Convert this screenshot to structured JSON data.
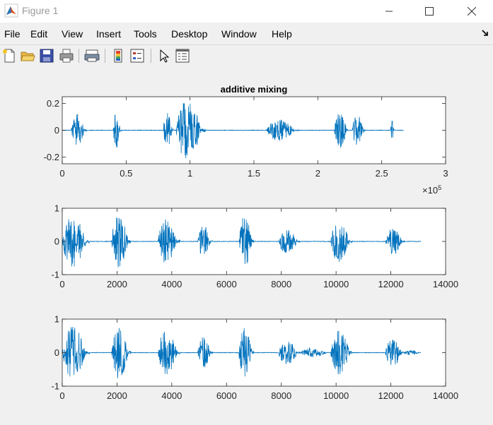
{
  "window": {
    "title": "Figure 1",
    "app_icon": "matlab-icon",
    "controls": [
      "minimize-icon",
      "maximize-icon",
      "close-icon"
    ]
  },
  "menu": {
    "items": [
      "File",
      "Edit",
      "View",
      "Insert",
      "Tools",
      "Desktop",
      "Window",
      "Help"
    ]
  },
  "toolbar": {
    "buttons": [
      "new-figure-icon",
      "open-folder-icon",
      "save-icon",
      "print-icon",
      "print-preview-icon",
      "colorbar-icon",
      "legend-icon",
      "edit-plot-arrow-icon",
      "property-inspector-icon"
    ]
  },
  "colors": {
    "line": "#0072bd",
    "background": "#f0f0f0",
    "axes_bg": "#ffffff"
  },
  "chart_data": [
    {
      "type": "line",
      "title": "additive mixing",
      "xlim": [
        0,
        300000
      ],
      "ylim": [
        -0.25,
        0.25
      ],
      "xticks": [
        "0",
        "0.5",
        "1",
        "1.5",
        "2",
        "2.5",
        "3"
      ],
      "yticks": [
        "0.2",
        "0",
        "-0.2"
      ],
      "x_exponent_label": "×10",
      "x_exponent_power": "5",
      "signal_length": 267000,
      "bursts": [
        {
          "start": 7000,
          "end": 19000,
          "amp": 0.15
        },
        {
          "start": 40000,
          "end": 46000,
          "amp": 0.17
        },
        {
          "start": 79000,
          "end": 87000,
          "amp": 0.17
        },
        {
          "start": 89000,
          "end": 112000,
          "amp": 0.27
        },
        {
          "start": 160000,
          "end": 185000,
          "amp": 0.1
        },
        {
          "start": 213000,
          "end": 224000,
          "amp": 0.17
        },
        {
          "start": 227000,
          "end": 237000,
          "amp": 0.15
        },
        {
          "start": 257000,
          "end": 260000,
          "amp": 0.1
        }
      ]
    },
    {
      "type": "line",
      "xlim": [
        0,
        14000
      ],
      "ylim": [
        -1,
        1
      ],
      "xticks": [
        "0",
        "2000",
        "4000",
        "6000",
        "8000",
        "10000",
        "12000",
        "14000"
      ],
      "yticks": [
        "1",
        "0",
        "-1"
      ],
      "signal_length": 13100,
      "bursts": [
        {
          "start": 0,
          "end": 1000,
          "amp": 0.95
        },
        {
          "start": 1800,
          "end": 2500,
          "amp": 1.0
        },
        {
          "start": 3500,
          "end": 4300,
          "amp": 0.85
        },
        {
          "start": 4950,
          "end": 5500,
          "amp": 0.6
        },
        {
          "start": 6450,
          "end": 7000,
          "amp": 0.95
        },
        {
          "start": 7900,
          "end": 8700,
          "amp": 0.45
        },
        {
          "start": 9800,
          "end": 10600,
          "amp": 0.8
        },
        {
          "start": 11800,
          "end": 12500,
          "amp": 0.5
        }
      ]
    },
    {
      "type": "line",
      "xlim": [
        0,
        14000
      ],
      "ylim": [
        -1,
        1
      ],
      "xticks": [
        "0",
        "2000",
        "4000",
        "6000",
        "8000",
        "10000",
        "12000",
        "14000"
      ],
      "yticks": [
        "1",
        "0",
        "-1"
      ],
      "signal_length": 13100,
      "bursts": [
        {
          "start": 0,
          "end": 1000,
          "amp": 0.95
        },
        {
          "start": 1800,
          "end": 2500,
          "amp": 1.0
        },
        {
          "start": 3500,
          "end": 4300,
          "amp": 0.85
        },
        {
          "start": 4950,
          "end": 5500,
          "amp": 0.6
        },
        {
          "start": 6450,
          "end": 7000,
          "amp": 0.95
        },
        {
          "start": 7900,
          "end": 8700,
          "amp": 0.45
        },
        {
          "start": 8700,
          "end": 9800,
          "amp": 0.18
        },
        {
          "start": 9800,
          "end": 10600,
          "amp": 0.8
        },
        {
          "start": 11800,
          "end": 12500,
          "amp": 0.5
        },
        {
          "start": 12500,
          "end": 13100,
          "amp": 0.1
        }
      ]
    }
  ]
}
